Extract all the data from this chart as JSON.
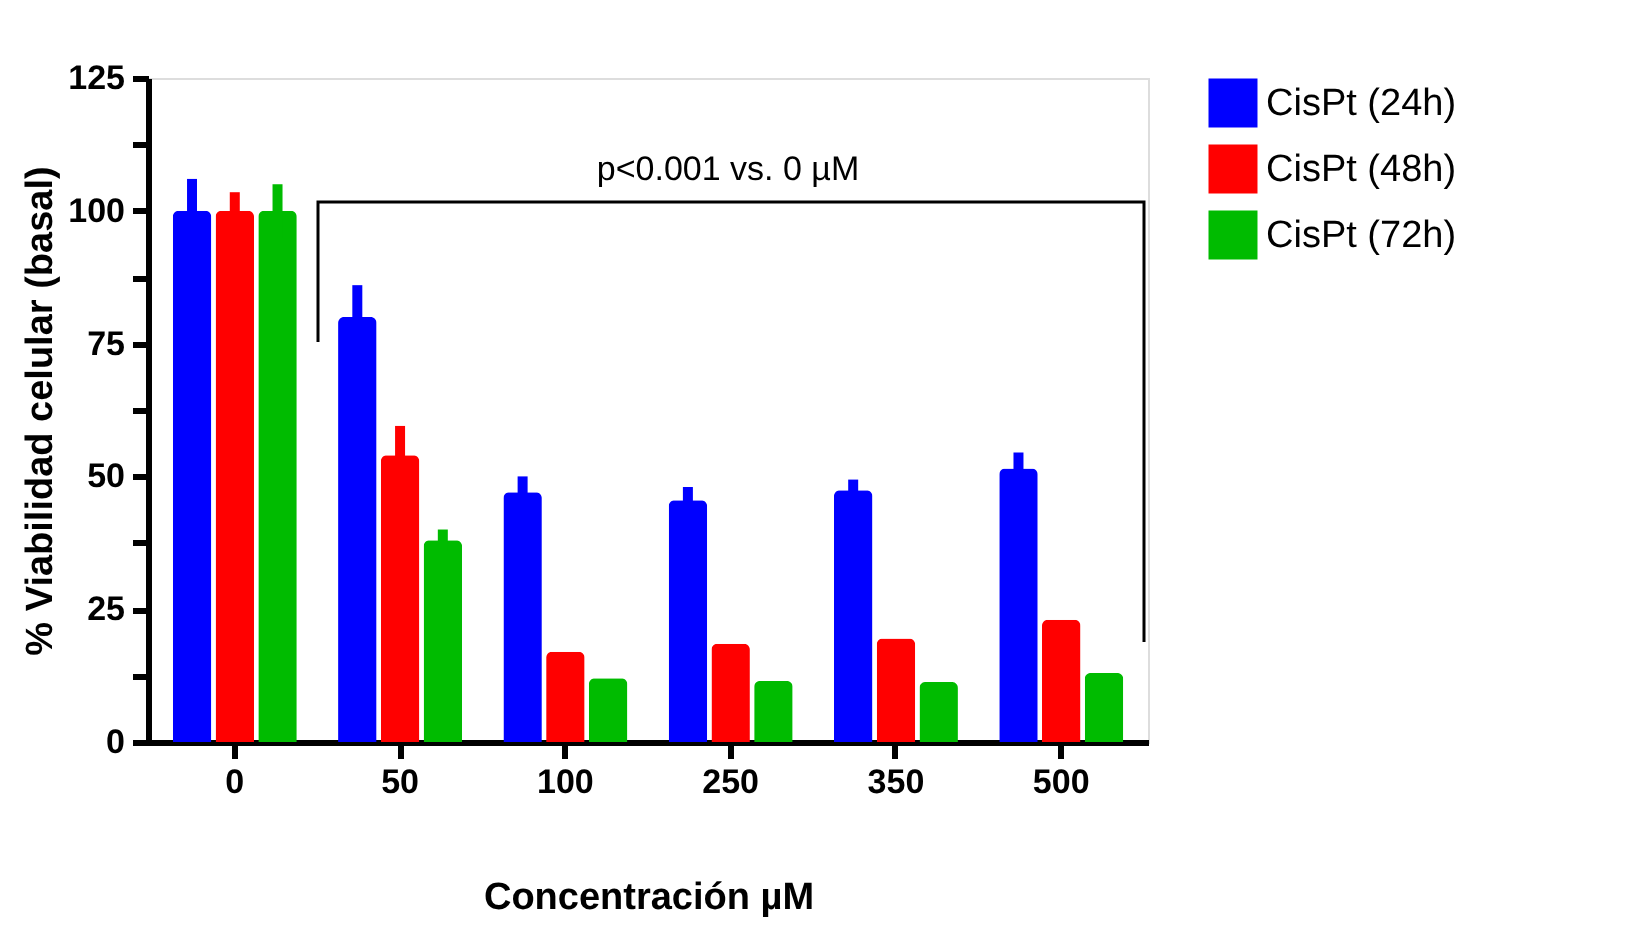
{
  "chart_data": {
    "type": "bar",
    "xlabel": "Concentración µM",
    "ylabel": "% Viabilidad celular (basal)",
    "categories": [
      "0",
      "50",
      "100",
      "250",
      "350",
      "500"
    ],
    "series": [
      {
        "name": "CisPt (24h)",
        "color": "#0000ff",
        "values": [
          100,
          80,
          47,
          45.5,
          47.4,
          51.5
        ],
        "errors": [
          6,
          6,
          3,
          2.5,
          2,
          3
        ]
      },
      {
        "name": "CisPt (48h)",
        "color": "#ff0000",
        "values": [
          100,
          54,
          17,
          18.5,
          19.5,
          23
        ],
        "errors": [
          3.5,
          5.5,
          null,
          null,
          null,
          null
        ]
      },
      {
        "name": "CisPt (72h)",
        "color": "#00bb00",
        "values": [
          100,
          38,
          12,
          11.5,
          11.3,
          13
        ],
        "errors": [
          5,
          2,
          null,
          null,
          null,
          null
        ]
      }
    ],
    "ylim": [
      0,
      125
    ],
    "yticks": [
      0,
      {
        "value": 12.5,
        "label": null
      },
      25,
      {
        "value": 37.5,
        "label": null
      },
      50,
      {
        "value": 62.5,
        "label": null
      },
      75,
      {
        "value": 87.5,
        "label": null
      },
      100,
      {
        "value": 112.5,
        "label": null
      },
      125
    ],
    "annotations": [
      "p<0.001 vs. 0 µM"
    ],
    "legend": "top right"
  }
}
